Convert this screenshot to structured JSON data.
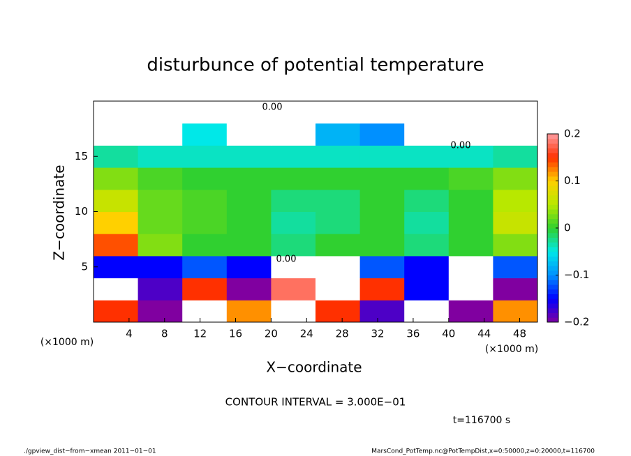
{
  "chart_data": {
    "type": "heatmap",
    "title": "disturbunce of potential temperature",
    "x_label": "X−coordinate",
    "y_label": "Z−coordinate",
    "x_unit": "(×1000 m)",
    "y_unit": "(×1000 m)",
    "annotations": [
      "0.00",
      "0.00",
      "0.00"
    ],
    "contour_interval": "CONTOUR INTERVAL = 3.000E−01",
    "time": "t=116700 s",
    "footer_left": "./gpview_dist−from−xmean  2011−01−01",
    "footer_right": "MarsCond_PotTemp.nc@PotTempDist,x=0:50000,z=0:20000,t=116700",
    "x": [
      2.5,
      7.5,
      12.5,
      17.5,
      22.5,
      27.5,
      32.5,
      37.5,
      42.5,
      47.5
    ],
    "z": [
      1,
      3,
      5,
      7,
      9,
      11,
      13,
      15,
      17,
      19
    ],
    "values": [
      [
        0.15,
        -0.2,
        0.3,
        0.12,
        0.3,
        0.15,
        -0.18,
        0.3,
        -0.2,
        0.12
      ],
      [
        0.3,
        -0.18,
        0.15,
        -0.2,
        0.18,
        0.3,
        0.15,
        -0.15,
        0.3,
        -0.2
      ],
      [
        -0.15,
        -0.15,
        -0.12,
        -0.15,
        0.3,
        0.3,
        -0.12,
        -0.15,
        0.3,
        -0.12
      ],
      [
        0.14,
        0.03,
        0,
        0,
        -0.02,
        0,
        0,
        -0.02,
        0,
        0.03
      ],
      [
        0.1,
        0.02,
        0.01,
        0,
        -0.03,
        -0.02,
        0,
        -0.03,
        0,
        0.06
      ],
      [
        0.06,
        0.02,
        0.01,
        0,
        -0.02,
        -0.02,
        0,
        -0.02,
        0,
        0.05
      ],
      [
        0.03,
        0.01,
        0,
        0,
        0,
        0,
        0,
        0,
        0.01,
        0.03
      ],
      [
        -0.03,
        -0.04,
        -0.04,
        -0.04,
        -0.04,
        -0.04,
        -0.04,
        -0.04,
        -0.04,
        -0.03
      ],
      [
        0.3,
        0.3,
        -0.05,
        0.3,
        0.3,
        -0.08,
        -0.1,
        0.3,
        0.3,
        0.3
      ],
      [
        0.3,
        0.3,
        0.3,
        0.3,
        0.3,
        0.3,
        0.3,
        0.3,
        0.3,
        0.3
      ]
    ],
    "xlim": [
      0,
      50
    ],
    "ylim": [
      0,
      20
    ],
    "xticks": [
      4,
      8,
      12,
      16,
      20,
      24,
      28,
      32,
      36,
      40,
      44,
      48
    ],
    "yticks": [
      5,
      10,
      15
    ],
    "clim": [
      -0.2,
      0.2
    ],
    "cticks": [
      {
        "value": -0.2,
        "label": "−0.2"
      },
      {
        "value": -0.1,
        "label": "−0.1"
      },
      0,
      0.1,
      0.2
    ],
    "colors": [
      "#8000a0",
      "#0000ff",
      "#0090ff",
      "#00e8e8",
      "#30d030",
      "#b8e800",
      "#ffd000",
      "#ff3000",
      "#ff9ca0"
    ],
    "out_of_range_color": "#ffffff"
  }
}
